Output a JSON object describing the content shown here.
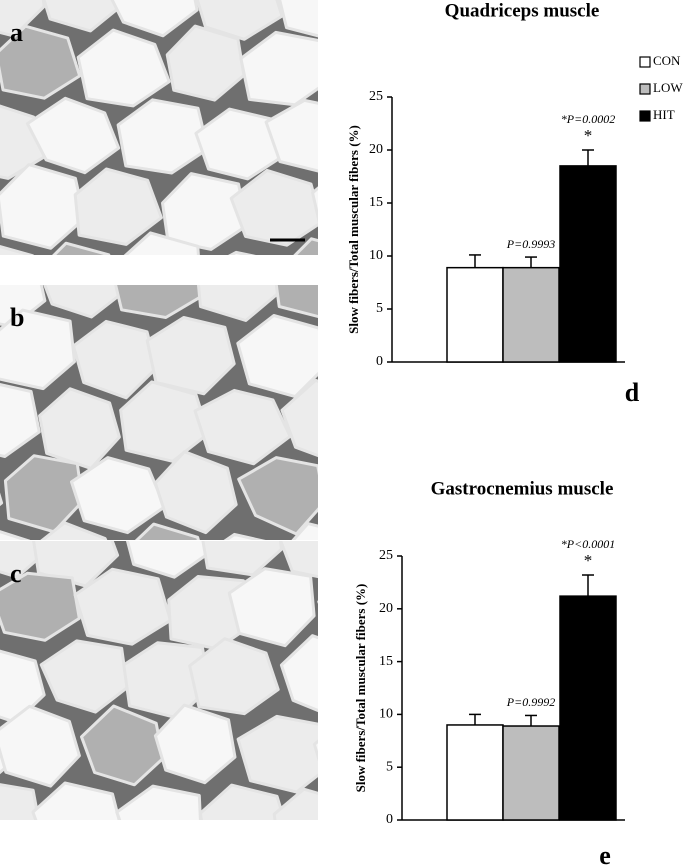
{
  "images": [
    {
      "label": "a"
    },
    {
      "label": "b"
    },
    {
      "label": "c"
    }
  ],
  "chart_data": [
    {
      "type": "bar",
      "title": "Quadriceps muscle",
      "y_label": "Slow fibers/Total muscular fibers (%)",
      "panel_label": "d",
      "ylim": [
        0,
        25
      ],
      "yticks": [
        0,
        5,
        10,
        15,
        20,
        25
      ],
      "legend": "top-right",
      "series": [
        {
          "name": "CON",
          "color": "#ffffff",
          "values": [
            8.9
          ],
          "errors": [
            1.2
          ]
        },
        {
          "name": "LOW",
          "color": "#bdbdbd",
          "values": [
            8.9
          ],
          "errors": [
            1.0
          ]
        },
        {
          "name": "HIT",
          "color": "#000000",
          "values": [
            18.5
          ],
          "errors": [
            1.5
          ]
        }
      ],
      "annotations": [
        "P=0.9993",
        "*P=0.0002",
        "*"
      ]
    },
    {
      "type": "bar",
      "title": "Gastrocnemius muscle",
      "y_label": "Slow fibers/Total muscular fibers (%)",
      "panel_label": "e",
      "ylim": [
        0,
        25
      ],
      "yticks": [
        0,
        5,
        10,
        15,
        20,
        25
      ],
      "series": [
        {
          "color": "#ffffff",
          "values": [
            9.0
          ],
          "errors": [
            1.0
          ]
        },
        {
          "color": "#bdbdbd",
          "values": [
            8.9
          ],
          "errors": [
            1.0
          ]
        },
        {
          "color": "#000000",
          "values": [
            21.2
          ],
          "errors": [
            2.0
          ]
        }
      ],
      "annotations": [
        "P=0.9992",
        "*P<0.0001",
        "*"
      ]
    }
  ]
}
